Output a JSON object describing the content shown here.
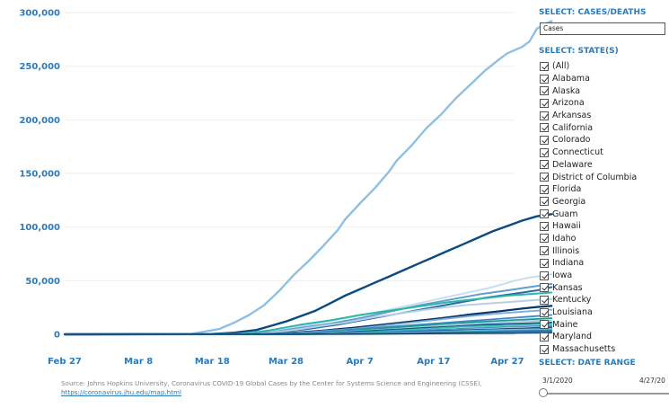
{
  "chart_data": {
    "type": "line",
    "x_ticks": [
      "Feb 27",
      "Mar 8",
      "Mar 18",
      "Mar 28",
      "Apr 7",
      "Apr 17",
      "Apr 27"
    ],
    "y_ticks": [
      "300,000",
      "250,000",
      "200,000",
      "150,000",
      "100,000",
      "50,000",
      "0"
    ],
    "ylim": [
      0,
      300000
    ],
    "grid": true,
    "series": [
      {
        "color": "#8ec0e4",
        "width": 2.4,
        "points": [
          [
            0,
            0
          ],
          [
            17,
            200
          ],
          [
            21,
            5000
          ],
          [
            23,
            11000
          ],
          [
            25,
            18000
          ],
          [
            27,
            27000
          ],
          [
            29,
            40000
          ],
          [
            31,
            55000
          ],
          [
            33,
            68000
          ],
          [
            35,
            82000
          ],
          [
            37,
            97000
          ],
          [
            38,
            107000
          ],
          [
            40,
            122000
          ],
          [
            42,
            136000
          ],
          [
            44,
            152000
          ],
          [
            45,
            162000
          ],
          [
            47,
            176000
          ],
          [
            49,
            192000
          ],
          [
            51,
            205000
          ],
          [
            53,
            220000
          ],
          [
            55,
            233000
          ],
          [
            57,
            246000
          ],
          [
            59,
            257000
          ],
          [
            60,
            262000
          ],
          [
            62,
            268000
          ],
          [
            63,
            273000
          ],
          [
            64,
            285000
          ],
          [
            65,
            289000
          ],
          [
            66,
            292000
          ]
        ]
      },
      {
        "color": "#0a4a7e",
        "width": 2.4,
        "points": [
          [
            0,
            0
          ],
          [
            20,
            300
          ],
          [
            23,
            1500
          ],
          [
            26,
            4000
          ],
          [
            28,
            8000
          ],
          [
            30,
            12000
          ],
          [
            32,
            17000
          ],
          [
            34,
            22000
          ],
          [
            36,
            29000
          ],
          [
            38,
            36000
          ],
          [
            40,
            42000
          ],
          [
            42,
            48000
          ],
          [
            44,
            54000
          ],
          [
            46,
            60000
          ],
          [
            48,
            66000
          ],
          [
            50,
            72000
          ],
          [
            52,
            78000
          ],
          [
            54,
            84000
          ],
          [
            56,
            90000
          ],
          [
            58,
            96000
          ],
          [
            60,
            101000
          ],
          [
            62,
            106000
          ],
          [
            64,
            110000
          ],
          [
            66,
            112000
          ]
        ]
      },
      {
        "color": "#c6dff0",
        "width": 2.0,
        "points": [
          [
            0,
            0
          ],
          [
            23,
            200
          ],
          [
            26,
            1500
          ],
          [
            30,
            5000
          ],
          [
            34,
            10000
          ],
          [
            38,
            15000
          ],
          [
            42,
            20000
          ],
          [
            46,
            26000
          ],
          [
            50,
            32000
          ],
          [
            54,
            38000
          ],
          [
            58,
            44000
          ],
          [
            61,
            50000
          ],
          [
            63,
            53000
          ],
          [
            66,
            56000
          ]
        ]
      },
      {
        "color": "#5e9fd1",
        "width": 2.0,
        "points": [
          [
            0,
            0
          ],
          [
            24,
            100
          ],
          [
            28,
            2000
          ],
          [
            32,
            6000
          ],
          [
            36,
            10000
          ],
          [
            40,
            15000
          ],
          [
            44,
            21000
          ],
          [
            48,
            27000
          ],
          [
            52,
            32000
          ],
          [
            56,
            37000
          ],
          [
            60,
            41000
          ],
          [
            63,
            44000
          ],
          [
            66,
            47000
          ]
        ]
      },
      {
        "color": "#2a6aa6",
        "width": 2.0,
        "points": [
          [
            0,
            0
          ],
          [
            25,
            100
          ],
          [
            29,
            2000
          ],
          [
            33,
            5000
          ],
          [
            37,
            9000
          ],
          [
            41,
            14000
          ],
          [
            45,
            19000
          ],
          [
            49,
            24000
          ],
          [
            53,
            29000
          ],
          [
            57,
            34000
          ],
          [
            61,
            38000
          ],
          [
            64,
            41000
          ],
          [
            66,
            44000
          ]
        ]
      },
      {
        "color": "#2db5a5",
        "width": 2.0,
        "points": [
          [
            0,
            0
          ],
          [
            24,
            100
          ],
          [
            28,
            4000
          ],
          [
            32,
            9000
          ],
          [
            36,
            13000
          ],
          [
            40,
            18000
          ],
          [
            44,
            22000
          ],
          [
            48,
            26000
          ],
          [
            52,
            30000
          ],
          [
            56,
            33000
          ],
          [
            60,
            36000
          ],
          [
            63,
            37500
          ],
          [
            66,
            39000
          ]
        ]
      },
      {
        "color": "#b7cfe3",
        "width": 2.0,
        "points": [
          [
            0,
            0
          ],
          [
            26,
            100
          ],
          [
            30,
            3000
          ],
          [
            34,
            7000
          ],
          [
            38,
            11000
          ],
          [
            42,
            16000
          ],
          [
            46,
            20000
          ],
          [
            50,
            24000
          ],
          [
            54,
            27000
          ],
          [
            58,
            29000
          ],
          [
            62,
            31000
          ],
          [
            66,
            33000
          ]
        ]
      },
      {
        "color": "#063766",
        "width": 2.2,
        "points": [
          [
            0,
            0
          ],
          [
            27,
            100
          ],
          [
            31,
            1500
          ],
          [
            35,
            3500
          ],
          [
            39,
            6000
          ],
          [
            43,
            9000
          ],
          [
            47,
            12000
          ],
          [
            51,
            15000
          ],
          [
            55,
            18500
          ],
          [
            59,
            21500
          ],
          [
            62,
            24000
          ],
          [
            64,
            25500
          ],
          [
            66,
            26500
          ]
        ]
      },
      {
        "color": "#7aaed8",
        "width": 1.8,
        "points": [
          [
            0,
            0
          ],
          [
            27,
            100
          ],
          [
            31,
            1000
          ],
          [
            35,
            3000
          ],
          [
            39,
            5000
          ],
          [
            43,
            8000
          ],
          [
            47,
            11000
          ],
          [
            51,
            14000
          ],
          [
            55,
            17000
          ],
          [
            59,
            19500
          ],
          [
            63,
            21500
          ],
          [
            66,
            23000
          ]
        ]
      },
      {
        "color": "#3f88c5",
        "width": 1.8,
        "points": [
          [
            0,
            0
          ],
          [
            28,
            100
          ],
          [
            32,
            1000
          ],
          [
            36,
            3000
          ],
          [
            40,
            5000
          ],
          [
            44,
            7000
          ],
          [
            48,
            9000
          ],
          [
            52,
            11000
          ],
          [
            56,
            13000
          ],
          [
            60,
            15000
          ],
          [
            63,
            16500
          ],
          [
            66,
            18000
          ]
        ]
      },
      {
        "color": "#1f9b8b",
        "width": 1.8,
        "points": [
          [
            0,
            0
          ],
          [
            28,
            100
          ],
          [
            32,
            800
          ],
          [
            36,
            2000
          ],
          [
            40,
            4000
          ],
          [
            44,
            6000
          ],
          [
            48,
            8000
          ],
          [
            52,
            10000
          ],
          [
            56,
            11500
          ],
          [
            60,
            13000
          ],
          [
            63,
            14000
          ],
          [
            66,
            15000
          ]
        ]
      },
      {
        "color": "#a4c8e6",
        "width": 1.8,
        "points": [
          [
            0,
            0
          ],
          [
            29,
            100
          ],
          [
            33,
            700
          ],
          [
            37,
            2000
          ],
          [
            41,
            3500
          ],
          [
            45,
            5000
          ],
          [
            49,
            7000
          ],
          [
            53,
            9000
          ],
          [
            57,
            10500
          ],
          [
            61,
            12000
          ],
          [
            66,
            13000
          ]
        ]
      },
      {
        "color": "#11558f",
        "width": 1.8,
        "points": [
          [
            0,
            0
          ],
          [
            29,
            100
          ],
          [
            33,
            600
          ],
          [
            37,
            1500
          ],
          [
            41,
            3000
          ],
          [
            45,
            4500
          ],
          [
            49,
            6000
          ],
          [
            53,
            7500
          ],
          [
            57,
            9000
          ],
          [
            61,
            10000
          ],
          [
            66,
            11000
          ]
        ]
      },
      {
        "color": "#38c2a9",
        "width": 1.6,
        "points": [
          [
            0,
            0
          ],
          [
            30,
            100
          ],
          [
            34,
            500
          ],
          [
            38,
            1200
          ],
          [
            42,
            2500
          ],
          [
            46,
            4000
          ],
          [
            50,
            5500
          ],
          [
            54,
            7000
          ],
          [
            58,
            8000
          ],
          [
            62,
            9000
          ],
          [
            66,
            9500
          ]
        ]
      },
      {
        "color": "#4b95cf",
        "width": 1.6,
        "points": [
          [
            0,
            0
          ],
          [
            30,
            100
          ],
          [
            34,
            400
          ],
          [
            38,
            1000
          ],
          [
            42,
            2000
          ],
          [
            46,
            3000
          ],
          [
            50,
            4200
          ],
          [
            54,
            5400
          ],
          [
            58,
            6500
          ],
          [
            62,
            7400
          ],
          [
            66,
            8000
          ]
        ]
      },
      {
        "color": "#0d4f86",
        "width": 1.6,
        "points": [
          [
            0,
            0
          ],
          [
            31,
            100
          ],
          [
            35,
            300
          ],
          [
            39,
            800
          ],
          [
            43,
            1500
          ],
          [
            47,
            2400
          ],
          [
            51,
            3300
          ],
          [
            55,
            4200
          ],
          [
            59,
            5000
          ],
          [
            63,
            5800
          ],
          [
            66,
            6500
          ]
        ]
      },
      {
        "color": "#86b9e0",
        "width": 1.6,
        "points": [
          [
            0,
            0
          ],
          [
            31,
            100
          ],
          [
            35,
            300
          ],
          [
            39,
            700
          ],
          [
            43,
            1200
          ],
          [
            47,
            1900
          ],
          [
            51,
            2600
          ],
          [
            55,
            3400
          ],
          [
            59,
            4100
          ],
          [
            63,
            4700
          ],
          [
            66,
            5200
          ]
        ]
      },
      {
        "color": "#26a69a",
        "width": 1.5,
        "points": [
          [
            0,
            0
          ],
          [
            32,
            100
          ],
          [
            36,
            200
          ],
          [
            40,
            500
          ],
          [
            44,
            1000
          ],
          [
            48,
            1600
          ],
          [
            52,
            2200
          ],
          [
            56,
            2800
          ],
          [
            60,
            3300
          ],
          [
            63,
            3700
          ],
          [
            66,
            4000
          ]
        ]
      },
      {
        "color": "#1b64a3",
        "width": 1.5,
        "points": [
          [
            0,
            0
          ],
          [
            32,
            50
          ],
          [
            36,
            200
          ],
          [
            40,
            400
          ],
          [
            44,
            700
          ],
          [
            48,
            1100
          ],
          [
            52,
            1600
          ],
          [
            56,
            2100
          ],
          [
            60,
            2500
          ],
          [
            63,
            2800
          ],
          [
            66,
            3000
          ]
        ]
      },
      {
        "color": "#5aa3d8",
        "width": 1.5,
        "points": [
          [
            0,
            0
          ],
          [
            33,
            50
          ],
          [
            37,
            150
          ],
          [
            41,
            300
          ],
          [
            45,
            550
          ],
          [
            49,
            850
          ],
          [
            53,
            1200
          ],
          [
            57,
            1500
          ],
          [
            61,
            1800
          ],
          [
            66,
            2100
          ]
        ]
      },
      {
        "color": "#0e3c6e",
        "width": 1.5,
        "points": [
          [
            0,
            0
          ],
          [
            33,
            50
          ],
          [
            37,
            100
          ],
          [
            41,
            200
          ],
          [
            45,
            400
          ],
          [
            49,
            600
          ],
          [
            53,
            800
          ],
          [
            57,
            1000
          ],
          [
            61,
            1200
          ],
          [
            66,
            1400
          ]
        ]
      }
    ]
  },
  "source": {
    "text": "Source: Johns Hopkins University, Coronavirus COVID-19 Global Cases by the Center for Systems Science and Engineering (CSSE),",
    "link": "https://coronavirus.jhu.edu/map.html"
  },
  "panel": {
    "metric_heading": "SELECT: CASES/DEATHS",
    "metric_selected": "Cases",
    "states_heading": "SELECT: STATE(S)",
    "states": [
      "(All)",
      "Alabama",
      "Alaska",
      "Arizona",
      "Arkansas",
      "California",
      "Colorado",
      "Connecticut",
      "Delaware",
      "District of Columbia",
      "Florida",
      "Georgia",
      "Guam",
      "Hawaii",
      "Idaho",
      "Illinois",
      "Indiana",
      "Iowa",
      "Kansas",
      "Kentucky",
      "Louisiana",
      "Maine",
      "Maryland",
      "Massachusetts"
    ],
    "date_heading": "SELECT: DATE RANGE",
    "date_start": "3/1/2020",
    "date_end": "4/27/20"
  }
}
